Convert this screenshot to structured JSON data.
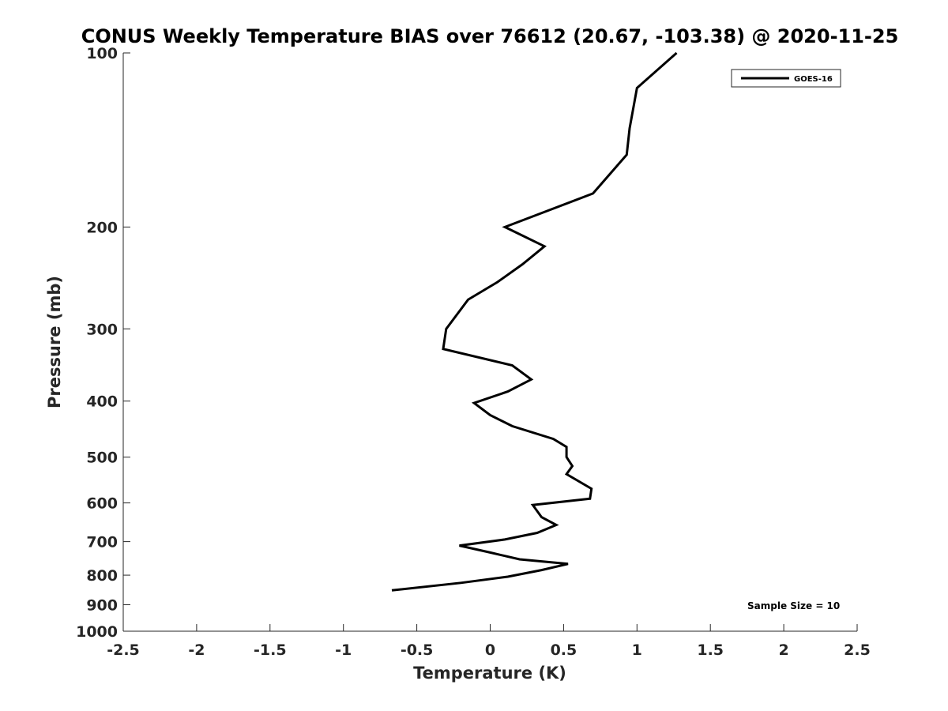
{
  "chart_data": {
    "type": "line",
    "title": "CONUS Weekly Temperature BIAS over 76612 (20.67, -103.38) @ 2020-11-25",
    "xlabel": "Temperature (K)",
    "ylabel": "Pressure (mb)",
    "xlim": [
      -2.5,
      2.5
    ],
    "ylim": [
      100,
      1000
    ],
    "y_scale": "log",
    "y_reversed": true,
    "x_ticks": [
      "-2.5",
      "-2",
      "-1.5",
      "-1",
      "-0.5",
      "0",
      "0.5",
      "1",
      "1.5",
      "2",
      "2.5"
    ],
    "y_ticks": [
      "100",
      "200",
      "300",
      "400",
      "500",
      "600",
      "700",
      "800",
      "900",
      "1000"
    ],
    "legend": {
      "position": "top-right",
      "entries": [
        "GOES-16"
      ]
    },
    "annotation": "Sample Size = 10",
    "grid": false,
    "series": [
      {
        "name": "GOES-16",
        "color": "#000000",
        "points": [
          [
            1.27,
            100
          ],
          [
            1.0,
            115
          ],
          [
            0.95,
            135
          ],
          [
            0.93,
            150
          ],
          [
            0.7,
            175
          ],
          [
            0.1,
            200
          ],
          [
            0.37,
            216
          ],
          [
            0.22,
            232
          ],
          [
            0.05,
            249
          ],
          [
            -0.15,
            267
          ],
          [
            -0.3,
            300
          ],
          [
            -0.32,
            325
          ],
          [
            0.15,
            347
          ],
          [
            0.28,
            367
          ],
          [
            0.12,
            385
          ],
          [
            -0.11,
            403
          ],
          [
            0.0,
            423
          ],
          [
            0.15,
            442
          ],
          [
            0.43,
            465
          ],
          [
            0.52,
            480
          ],
          [
            0.52,
            500
          ],
          [
            0.56,
            518
          ],
          [
            0.52,
            535
          ],
          [
            0.69,
            567
          ],
          [
            0.68,
            590
          ],
          [
            0.29,
            605
          ],
          [
            0.35,
            635
          ],
          [
            0.45,
            655
          ],
          [
            0.32,
            676
          ],
          [
            0.1,
            694
          ],
          [
            -0.21,
            711
          ],
          [
            0.0,
            731
          ],
          [
            0.2,
            751
          ],
          [
            0.53,
            765
          ],
          [
            0.35,
            784
          ],
          [
            0.12,
            805
          ],
          [
            -0.2,
            825
          ],
          [
            -0.67,
            850
          ]
        ]
      }
    ]
  }
}
